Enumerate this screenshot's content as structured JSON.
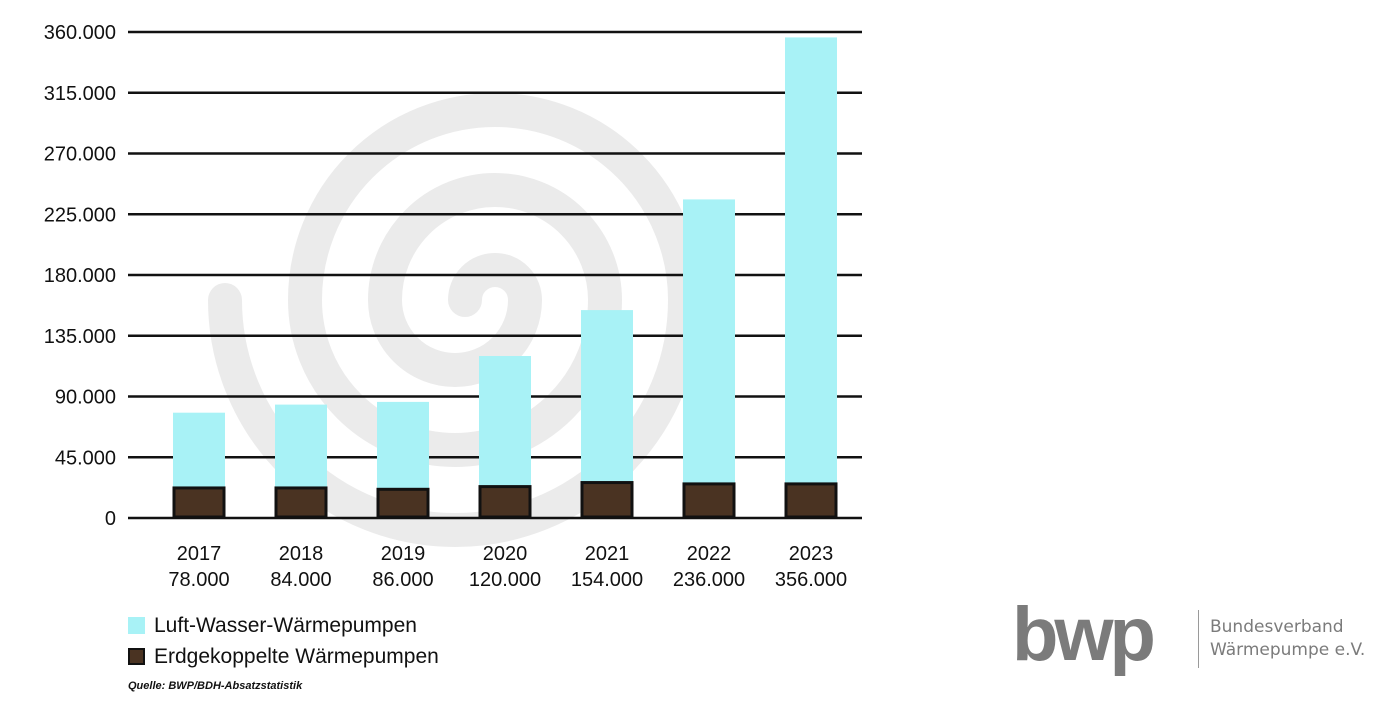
{
  "chart_data": {
    "type": "bar",
    "stacked": true,
    "categories": [
      "2017",
      "2018",
      "2019",
      "2020",
      "2021",
      "2022",
      "2023"
    ],
    "category_totals": [
      "78.000",
      "84.000",
      "86.000",
      "120.000",
      "154.000",
      "236.000",
      "356.000"
    ],
    "series": [
      {
        "name": "Erdgekoppelte Wärmepumpen",
        "color": "#4a3322",
        "values": [
          23000,
          23000,
          22000,
          24000,
          27000,
          26000,
          26000
        ]
      },
      {
        "name": "Luft-Wasser-Wärmepumpen",
        "color": "#a8f2f6",
        "values": [
          55000,
          61000,
          64000,
          96000,
          127000,
          210000,
          330000
        ]
      }
    ],
    "ylim": [
      0,
      360000
    ],
    "yticks": [
      0,
      45000,
      90000,
      135000,
      180000,
      225000,
      270000,
      315000,
      360000
    ],
    "ytick_labels": [
      "0",
      "45.000",
      "90.000",
      "135.000",
      "180.000",
      "225.000",
      "270.000",
      "315.000",
      "360.000"
    ],
    "grid": true,
    "legend_position": "bottom-left",
    "source": "Quelle: BWP/BDH-Absatzstatistik"
  },
  "legend": {
    "air_label": "Luft-Wasser-Wärmepumpen",
    "ground_label": "Erdgekoppelte Wärmepumpen"
  },
  "logo": {
    "mark": "bwp",
    "org_line1": "Bundesverband",
    "org_line2": "Wärmepumpe e.V.",
    "color": "#7b7b7b"
  }
}
